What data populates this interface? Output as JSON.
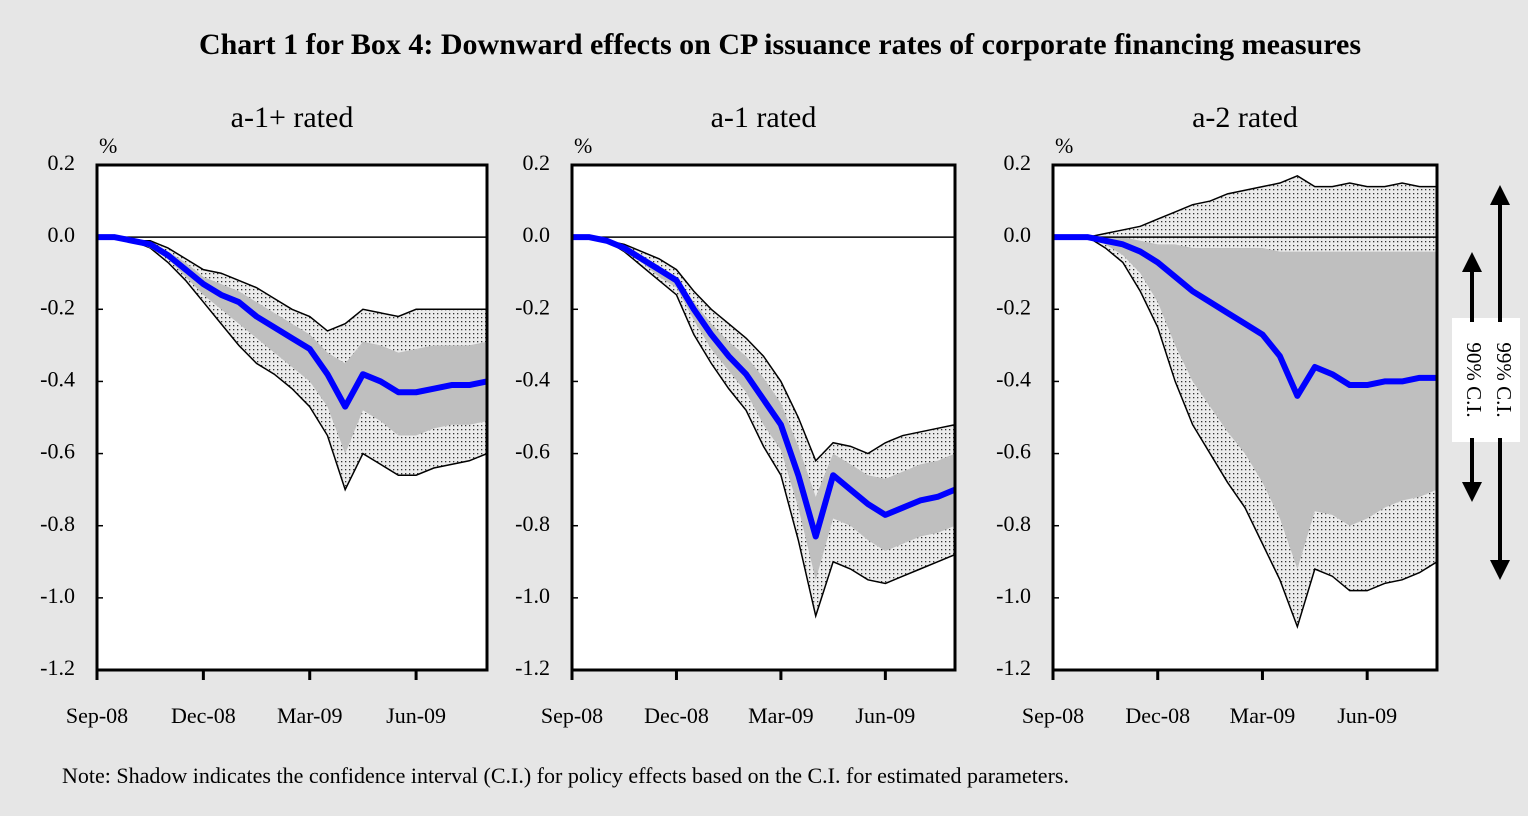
{
  "title": "Chart 1 for Box 4: Downward effects on CP issuance rates of corporate financing measures",
  "note": "Note: Shadow indicates the confidence interval (C.I.) for policy effects based on the C.I. for estimated parameters.",
  "ci_labels": [
    "90% C.I.",
    "99% C.I."
  ],
  "chart_data": [
    {
      "type": "line",
      "title": "a-1+ rated",
      "ylabel": "%",
      "categories": [
        "Sep-08",
        null,
        null,
        null,
        null,
        null,
        "Dec-08",
        null,
        null,
        null,
        null,
        null,
        "Mar-09",
        null,
        null,
        null,
        null,
        null,
        "Jun-09",
        null,
        null,
        null,
        null
      ],
      "ylim": [
        -1.2,
        0.2
      ],
      "yticks": [
        0.2,
        {
          "value": 0,
          "label": "0.0"
        },
        -0.2,
        -0.4,
        -0.6,
        -0.8,
        {
          "value": -1,
          "label": "-1.0"
        },
        -1.2
      ],
      "series": [
        {
          "color": "#0000ff",
          "values": [
            0,
            0,
            -0.01,
            -0.02,
            -0.05,
            -0.09,
            -0.13,
            -0.16,
            -0.18,
            -0.22,
            -0.25,
            -0.28,
            -0.31,
            -0.38,
            -0.47,
            -0.38,
            -0.4,
            -0.43,
            -0.43,
            -0.42,
            -0.41,
            -0.41,
            -0.4
          ]
        }
      ],
      "bands": [
        {
          "color": "#bfbfbf",
          "upper": [
            0,
            0,
            -0.01,
            -0.01,
            -0.03,
            -0.06,
            -0.09,
            -0.1,
            -0.12,
            -0.14,
            -0.17,
            -0.2,
            -0.22,
            -0.26,
            -0.24,
            -0.2,
            -0.21,
            -0.22,
            -0.2,
            -0.2,
            -0.2,
            -0.2,
            -0.2
          ],
          "lower": [
            0,
            0,
            -0.01,
            -0.03,
            -0.07,
            -0.12,
            -0.18,
            -0.24,
            -0.3,
            -0.35,
            -0.38,
            -0.42,
            -0.47,
            -0.55,
            -0.7,
            -0.6,
            -0.63,
            -0.66,
            -0.66,
            -0.64,
            -0.63,
            -0.62,
            -0.6
          ]
        },
        {
          "color": "#bfbfbf",
          "upper": [
            0,
            0,
            -0.01,
            -0.02,
            -0.04,
            -0.07,
            -0.11,
            -0.13,
            -0.15,
            -0.18,
            -0.21,
            -0.24,
            -0.27,
            -0.32,
            -0.35,
            -0.29,
            -0.3,
            -0.32,
            -0.31,
            -0.3,
            -0.3,
            -0.3,
            -0.29
          ],
          "lower": [
            0,
            0,
            -0.01,
            -0.03,
            -0.06,
            -0.11,
            -0.16,
            -0.2,
            -0.24,
            -0.28,
            -0.32,
            -0.36,
            -0.4,
            -0.47,
            -0.6,
            -0.48,
            -0.51,
            -0.55,
            -0.55,
            -0.53,
            -0.52,
            -0.52,
            -0.51
          ]
        }
      ]
    },
    {
      "type": "line",
      "title": "a-1 rated",
      "ylabel": "%",
      "categories": [
        "Sep-08",
        null,
        null,
        null,
        null,
        null,
        "Dec-08",
        null,
        null,
        null,
        null,
        null,
        "Mar-09",
        null,
        null,
        null,
        null,
        null,
        "Jun-09",
        null,
        null,
        null,
        null
      ],
      "ylim": [
        -1.2,
        0.2
      ],
      "yticks": [
        0.2,
        {
          "value": 0,
          "label": "0.0"
        },
        -0.2,
        -0.4,
        -0.6,
        -0.8,
        {
          "value": -1,
          "label": "-1.0"
        },
        -1.2
      ],
      "series": [
        {
          "color": "#0000ff",
          "values": [
            0,
            0,
            -0.01,
            -0.03,
            -0.06,
            -0.09,
            -0.12,
            -0.2,
            -0.27,
            -0.33,
            -0.38,
            -0.45,
            -0.52,
            -0.66,
            -0.83,
            -0.66,
            -0.7,
            -0.74,
            -0.77,
            -0.75,
            -0.73,
            -0.72,
            -0.7
          ]
        }
      ],
      "bands": [
        {
          "color": "#bfbfbf",
          "upper": [
            0,
            0,
            -0.01,
            -0.02,
            -0.04,
            -0.06,
            -0.09,
            -0.15,
            -0.2,
            -0.24,
            -0.28,
            -0.33,
            -0.4,
            -0.5,
            -0.62,
            -0.57,
            -0.58,
            -0.6,
            -0.57,
            -0.55,
            -0.54,
            -0.53,
            -0.52
          ],
          "lower": [
            0,
            0,
            -0.01,
            -0.04,
            -0.08,
            -0.12,
            -0.16,
            -0.27,
            -0.35,
            -0.42,
            -0.48,
            -0.58,
            -0.66,
            -0.84,
            -1.05,
            -0.9,
            -0.92,
            -0.95,
            -0.96,
            -0.94,
            -0.92,
            -0.9,
            -0.88
          ]
        },
        {
          "color": "#bfbfbf",
          "upper": [
            0,
            0,
            -0.01,
            -0.03,
            -0.05,
            -0.08,
            -0.11,
            -0.18,
            -0.24,
            -0.29,
            -0.33,
            -0.39,
            -0.46,
            -0.58,
            -0.72,
            -0.6,
            -0.63,
            -0.66,
            -0.67,
            -0.65,
            -0.63,
            -0.62,
            -0.6
          ],
          "lower": [
            0,
            0,
            -0.01,
            -0.04,
            -0.07,
            -0.11,
            -0.14,
            -0.23,
            -0.31,
            -0.37,
            -0.43,
            -0.52,
            -0.59,
            -0.75,
            -0.95,
            -0.78,
            -0.8,
            -0.84,
            -0.87,
            -0.85,
            -0.83,
            -0.82,
            -0.8
          ]
        }
      ]
    },
    {
      "type": "line",
      "title": "a-2 rated",
      "ylabel": "%",
      "categories": [
        "Sep-08",
        null,
        null,
        null,
        null,
        null,
        "Dec-08",
        null,
        null,
        null,
        null,
        null,
        "Mar-09",
        null,
        null,
        null,
        null,
        null,
        "Jun-09",
        null,
        null,
        null,
        null
      ],
      "ylim": [
        -1.2,
        0.2
      ],
      "yticks": [
        0.2,
        {
          "value": 0,
          "label": "0.0"
        },
        -0.2,
        -0.4,
        -0.6,
        -0.8,
        {
          "value": -1,
          "label": "-1.0"
        },
        -1.2
      ],
      "series": [
        {
          "color": "#0000ff",
          "values": [
            0,
            0,
            0,
            -0.01,
            -0.02,
            -0.04,
            -0.07,
            -0.11,
            -0.15,
            -0.18,
            -0.21,
            -0.24,
            -0.27,
            -0.33,
            -0.44,
            -0.36,
            -0.38,
            -0.41,
            -0.41,
            -0.4,
            -0.4,
            -0.39,
            -0.39
          ]
        }
      ],
      "bands": [
        {
          "color": "#bfbfbf",
          "upper": [
            0,
            0,
            0,
            0.01,
            0.02,
            0.03,
            0.05,
            0.07,
            0.09,
            0.1,
            0.12,
            0.13,
            0.14,
            0.15,
            0.17,
            0.14,
            0.14,
            0.15,
            0.14,
            0.14,
            0.15,
            0.14,
            0.14
          ],
          "lower": [
            0,
            0,
            0,
            -0.03,
            -0.07,
            -0.15,
            -0.25,
            -0.4,
            -0.52,
            -0.6,
            -0.68,
            -0.75,
            -0.85,
            -0.95,
            -1.08,
            -0.92,
            -0.94,
            -0.98,
            -0.98,
            -0.96,
            -0.95,
            -0.93,
            -0.9
          ]
        },
        {
          "color": "#bfbfbf",
          "upper": [
            0,
            0,
            0,
            0,
            0,
            -0.01,
            -0.02,
            -0.02,
            -0.03,
            -0.03,
            -0.03,
            -0.03,
            -0.03,
            -0.04,
            -0.04,
            -0.04,
            -0.04,
            -0.04,
            -0.04,
            -0.04,
            -0.04,
            -0.04,
            -0.04
          ],
          "lower": [
            0,
            0,
            0,
            -0.02,
            -0.05,
            -0.1,
            -0.18,
            -0.3,
            -0.4,
            -0.47,
            -0.54,
            -0.6,
            -0.68,
            -0.78,
            -0.92,
            -0.76,
            -0.77,
            -0.8,
            -0.78,
            -0.75,
            -0.73,
            -0.72,
            -0.7
          ]
        }
      ]
    }
  ]
}
